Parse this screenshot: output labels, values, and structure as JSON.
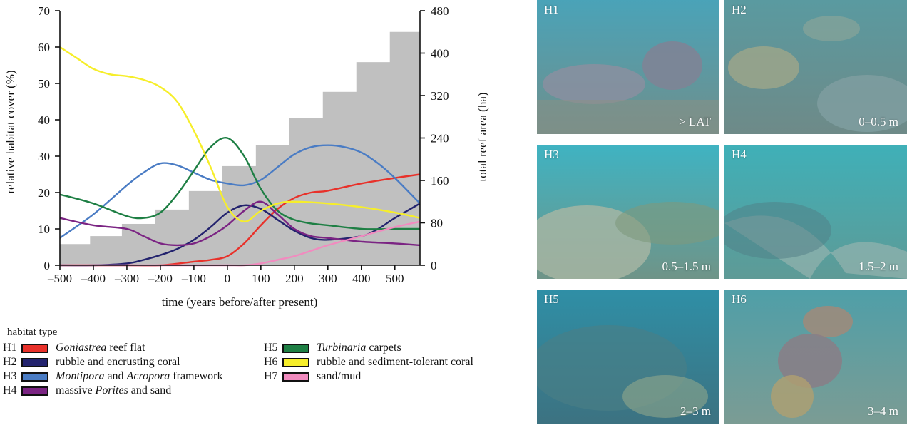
{
  "chart_data": {
    "type": "line",
    "xlabel": "time (years before/after present)",
    "ylabel": "relative habitat cover (%)",
    "y2label": "total reef area (ha)",
    "xlim": [
      -500,
      575
    ],
    "ylim": [
      0,
      70
    ],
    "y2lim": [
      0,
      480
    ],
    "xticks": [
      -500,
      -400,
      -300,
      -200,
      -100,
      0,
      100,
      200,
      300,
      400,
      500
    ],
    "xtick_labels": [
      "–500",
      "–400",
      "–300",
      "–200",
      "–100",
      "0",
      "100",
      "200",
      "300",
      "400",
      "500"
    ],
    "yticks": [
      0,
      10,
      20,
      30,
      40,
      50,
      60,
      70
    ],
    "y2ticks": [
      0,
      80,
      160,
      240,
      320,
      400,
      480
    ],
    "grid": false,
    "area_bars": {
      "fill": "#c0c0c0",
      "steps": [
        {
          "x0": -500,
          "x1": -410,
          "value": 40
        },
        {
          "x0": -410,
          "x1": -315,
          "value": 55
        },
        {
          "x0": -315,
          "x1": -215,
          "value": 78
        },
        {
          "x0": -215,
          "x1": -115,
          "value": 105
        },
        {
          "x0": -115,
          "x1": -15,
          "value": 140
        },
        {
          "x0": -15,
          "x1": 85,
          "value": 187
        },
        {
          "x0": 85,
          "x1": 185,
          "value": 227
        },
        {
          "x0": 185,
          "x1": 285,
          "value": 277
        },
        {
          "x0": 285,
          "x1": 385,
          "value": 327
        },
        {
          "x0": 385,
          "x1": 485,
          "value": 383
        },
        {
          "x0": 485,
          "x1": 575,
          "value": 440
        }
      ]
    },
    "series": [
      {
        "code": "H1",
        "color": "#e8312a",
        "x": [
          -500,
          -400,
          -300,
          -200,
          -100,
          -50,
          0,
          50,
          100,
          150,
          200,
          250,
          300,
          400,
          500,
          575
        ],
        "y": [
          0,
          0,
          0,
          0,
          1,
          1.5,
          2.5,
          6,
          11,
          15.5,
          18.5,
          20,
          20.5,
          22.5,
          24,
          25
        ]
      },
      {
        "code": "H2",
        "color": "#23236e",
        "x": [
          -500,
          -400,
          -300,
          -250,
          -200,
          -150,
          -100,
          -50,
          0,
          50,
          100,
          150,
          200,
          250,
          300,
          400,
          450,
          500,
          575
        ],
        "y": [
          0,
          0,
          0.5,
          1.5,
          2.8,
          4.5,
          7,
          10.5,
          14.5,
          16.5,
          15.5,
          12.5,
          9.5,
          7.5,
          7,
          8,
          10,
          13,
          17
        ]
      },
      {
        "code": "H3",
        "color": "#4a7cc4",
        "x": [
          -500,
          -400,
          -300,
          -250,
          -200,
          -150,
          -100,
          -50,
          0,
          50,
          100,
          150,
          200,
          250,
          300,
          350,
          400,
          450,
          500,
          575
        ],
        "y": [
          7.5,
          14,
          22,
          25.5,
          28,
          27.5,
          25.5,
          23.5,
          22.5,
          22,
          23.5,
          27,
          30.5,
          32.5,
          33,
          32.5,
          31,
          28,
          24,
          17
        ]
      },
      {
        "code": "H4",
        "color": "#7b2483",
        "x": [
          -500,
          -400,
          -300,
          -250,
          -200,
          -150,
          -100,
          -50,
          0,
          50,
          100,
          150,
          200,
          250,
          300,
          400,
          500,
          575
        ],
        "y": [
          13,
          11,
          10,
          8,
          6,
          5.5,
          6,
          8,
          11,
          15,
          17.5,
          14,
          10,
          8,
          7.5,
          6.5,
          6,
          5.5
        ]
      },
      {
        "code": "H5",
        "color": "#1e7f44",
        "x": [
          -500,
          -400,
          -300,
          -250,
          -200,
          -150,
          -100,
          -50,
          0,
          50,
          100,
          150,
          200,
          250,
          300,
          400,
          500,
          575
        ],
        "y": [
          19.5,
          17,
          13.5,
          13,
          14.5,
          19.5,
          26,
          32.5,
          35,
          30,
          21,
          15,
          12.5,
          11.5,
          11,
          10,
          10,
          10
        ]
      },
      {
        "code": "H6",
        "color": "#f6ee2a",
        "x": [
          -500,
          -450,
          -400,
          -350,
          -300,
          -250,
          -200,
          -150,
          -100,
          -50,
          0,
          50,
          100,
          150,
          200,
          300,
          400,
          500,
          575
        ],
        "y": [
          60,
          57,
          54,
          52.5,
          52,
          51,
          49,
          45,
          37,
          27,
          16,
          12,
          15,
          17,
          17.5,
          17,
          16,
          14.5,
          13
        ]
      },
      {
        "code": "H7",
        "color": "#f18bbf",
        "x": [
          -500,
          -100,
          0,
          50,
          100,
          150,
          200,
          250,
          300,
          400,
          500,
          575
        ],
        "y": [
          0,
          0,
          0,
          0,
          0.5,
          1.5,
          2.5,
          4,
          5.5,
          8,
          10.5,
          12
        ]
      }
    ]
  },
  "axis": {
    "xlabel": "time (years before/after present)",
    "ylabel": "relative habitat cover (%)",
    "y2label": "total reef area (ha)",
    "ytick_labels": [
      "0",
      "10",
      "20",
      "30",
      "40",
      "50",
      "60",
      "70"
    ],
    "y2tick_labels": [
      "0",
      "80",
      "160",
      "240",
      "320",
      "400",
      "480"
    ]
  },
  "legend": {
    "title": "habitat type",
    "items": [
      {
        "code": "H1",
        "color": "#e8312a",
        "label_html": "<i>Goniastrea</i> reef flat"
      },
      {
        "code": "H2",
        "color": "#23236e",
        "label_html": "rubble and encrusting coral"
      },
      {
        "code": "H3",
        "color": "#4a7cc4",
        "label_html": "<i>Montipora</i> and <i>Acropora</i> framework"
      },
      {
        "code": "H4",
        "color": "#7b2483",
        "label_html": "massive <i>Porites</i> and sand"
      },
      {
        "code": "H5",
        "color": "#1e7f44",
        "label_html": "<i>Turbinaria</i> carpets"
      },
      {
        "code": "H6",
        "color": "#f6ee2a",
        "label_html": "rubble and sediment-tolerant coral"
      },
      {
        "code": "H7",
        "color": "#f18bbf",
        "label_html": "sand/mud"
      }
    ]
  },
  "photos": [
    {
      "code": "H1",
      "depth": "> LAT",
      "top_color": "#4aa3b8",
      "bottom_color": "#6f8f8c",
      "feature": "boulders"
    },
    {
      "code": "H2",
      "depth": "0–0.5 m",
      "top_color": "#5a9aa0",
      "bottom_color": "#6e8a88",
      "feature": "plates"
    },
    {
      "code": "H3",
      "depth": "0.5–1.5 m",
      "top_color": "#3fb3c2",
      "bottom_color": "#6f9488",
      "feature": "framework"
    },
    {
      "code": "H4",
      "depth": "1.5–2 m",
      "top_color": "#3fb0b8",
      "bottom_color": "#5e9a96",
      "feature": "sand"
    },
    {
      "code": "H5",
      "depth": "2–3 m",
      "top_color": "#2f8fa6",
      "bottom_color": "#3c7281",
      "feature": "carpets"
    },
    {
      "code": "H6",
      "depth": "3–4 m",
      "top_color": "#4f9fa8",
      "bottom_color": "#7b9c94",
      "feature": "coral-head"
    }
  ]
}
